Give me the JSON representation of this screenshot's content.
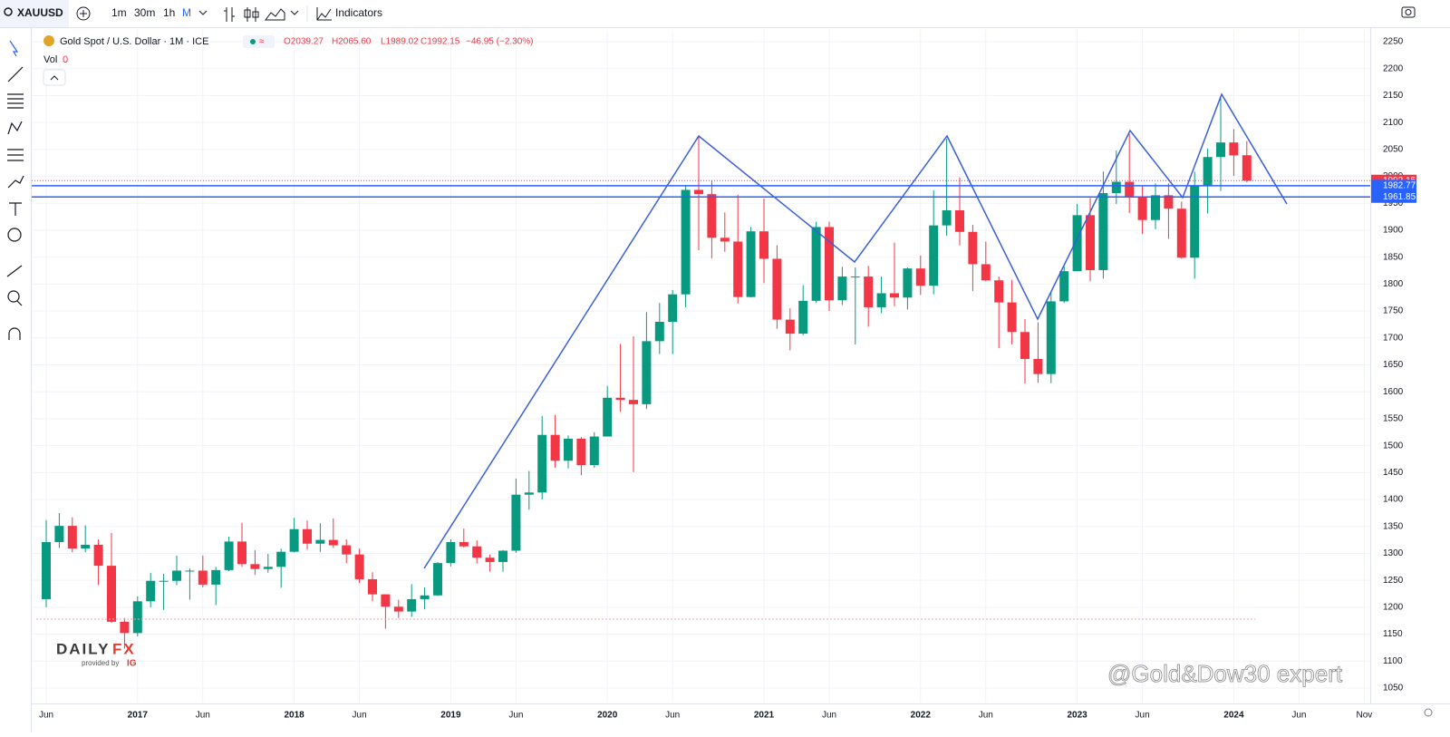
{
  "toolbar": {
    "symbol": "XAUUSD",
    "intervals": [
      "1m",
      "30m",
      "1h",
      "M"
    ],
    "indicators": "Indicators"
  },
  "legend": {
    "name": "Gold Spot / U.S. Dollar · 1M · ICE",
    "open": "O2039.27",
    "high": "H2065.60",
    "low": "L1989.02",
    "close": "C1992.15",
    "change": "−46.95 (−2.30%)",
    "vol_label": "Vol",
    "vol_value": "0"
  },
  "branding": {
    "logo_a": "DAILY",
    "logo_b": "FX",
    "provided": "provided by",
    "ig": "IG",
    "watermark": "@Gold&Dow30 expert"
  },
  "chart_data": {
    "type": "candlestick",
    "up_color": "#089981",
    "down_color": "#f23645",
    "grid": true,
    "x": [
      "2016-06",
      "2016-07",
      "2016-08",
      "2016-09",
      "2016-10",
      "2016-11",
      "2016-12",
      "2017-01",
      "2017-02",
      "2017-03",
      "2017-04",
      "2017-05",
      "2017-06",
      "2017-07",
      "2017-08",
      "2017-09",
      "2017-10",
      "2017-11",
      "2017-12",
      "2018-01",
      "2018-02",
      "2018-03",
      "2018-04",
      "2018-05",
      "2018-06",
      "2018-07",
      "2018-08",
      "2018-09",
      "2018-10",
      "2018-11",
      "2018-12",
      "2019-01",
      "2019-02",
      "2019-03",
      "2019-04",
      "2019-05",
      "2019-06",
      "2019-07",
      "2019-08",
      "2019-09",
      "2019-10",
      "2019-11",
      "2019-12",
      "2020-01",
      "2020-02",
      "2020-03",
      "2020-04",
      "2020-05",
      "2020-06",
      "2020-07",
      "2020-08",
      "2020-09",
      "2020-10",
      "2020-11",
      "2020-12",
      "2021-01",
      "2021-02",
      "2021-03",
      "2021-04",
      "2021-05",
      "2021-06",
      "2021-07",
      "2021-08",
      "2021-09",
      "2021-10",
      "2021-11",
      "2021-12",
      "2022-01",
      "2022-02",
      "2022-03",
      "2022-04",
      "2022-05",
      "2022-06",
      "2022-07",
      "2022-08",
      "2022-09",
      "2022-10",
      "2022-11",
      "2022-12",
      "2023-01",
      "2023-02",
      "2023-03",
      "2023-04",
      "2023-05",
      "2023-06",
      "2023-07",
      "2023-08",
      "2023-09",
      "2023-10",
      "2023-11",
      "2023-12",
      "2024-01",
      "2024-02"
    ],
    "ohlc": [
      [
        1215,
        1362,
        1200,
        1321
      ],
      [
        1321,
        1375,
        1310,
        1351
      ],
      [
        1351,
        1367,
        1302,
        1309
      ],
      [
        1309,
        1352,
        1302,
        1316
      ],
      [
        1316,
        1326,
        1241,
        1277
      ],
      [
        1277,
        1338,
        1171,
        1173
      ],
      [
        1173,
        1180,
        1123,
        1152
      ],
      [
        1152,
        1220,
        1146,
        1211
      ],
      [
        1211,
        1264,
        1200,
        1249
      ],
      [
        1249,
        1262,
        1195,
        1249
      ],
      [
        1249,
        1296,
        1241,
        1268
      ],
      [
        1268,
        1272,
        1214,
        1268
      ],
      [
        1268,
        1296,
        1237,
        1242
      ],
      [
        1242,
        1275,
        1204,
        1269
      ],
      [
        1269,
        1331,
        1267,
        1322
      ],
      [
        1322,
        1357,
        1275,
        1280
      ],
      [
        1280,
        1306,
        1260,
        1271
      ],
      [
        1271,
        1299,
        1264,
        1275
      ],
      [
        1275,
        1309,
        1236,
        1303
      ],
      [
        1303,
        1366,
        1302,
        1345
      ],
      [
        1345,
        1361,
        1307,
        1318
      ],
      [
        1318,
        1356,
        1303,
        1325
      ],
      [
        1325,
        1365,
        1310,
        1315
      ],
      [
        1315,
        1326,
        1282,
        1298
      ],
      [
        1298,
        1309,
        1245,
        1252
      ],
      [
        1252,
        1265,
        1211,
        1224
      ],
      [
        1224,
        1224,
        1160,
        1201
      ],
      [
        1201,
        1214,
        1180,
        1192
      ],
      [
        1192,
        1243,
        1182,
        1215
      ],
      [
        1215,
        1237,
        1196,
        1222
      ],
      [
        1222,
        1284,
        1221,
        1282
      ],
      [
        1282,
        1326,
        1276,
        1321
      ],
      [
        1321,
        1346,
        1311,
        1313
      ],
      [
        1313,
        1324,
        1281,
        1292
      ],
      [
        1292,
        1298,
        1266,
        1284
      ],
      [
        1284,
        1306,
        1266,
        1305
      ],
      [
        1305,
        1439,
        1301,
        1409
      ],
      [
        1409,
        1453,
        1381,
        1413
      ],
      [
        1413,
        1555,
        1400,
        1520
      ],
      [
        1520,
        1557,
        1459,
        1472
      ],
      [
        1472,
        1519,
        1458,
        1513
      ],
      [
        1513,
        1516,
        1445,
        1464
      ],
      [
        1464,
        1525,
        1459,
        1517
      ],
      [
        1517,
        1611,
        1517,
        1589
      ],
      [
        1589,
        1689,
        1563,
        1585
      ],
      [
        1585,
        1703,
        1451,
        1577
      ],
      [
        1577,
        1748,
        1568,
        1694
      ],
      [
        1694,
        1765,
        1670,
        1730
      ],
      [
        1730,
        1789,
        1670,
        1781
      ],
      [
        1781,
        1984,
        1757,
        1975
      ],
      [
        1975,
        2075,
        1863,
        1967
      ],
      [
        1967,
        1992,
        1848,
        1886
      ],
      [
        1886,
        1933,
        1860,
        1879
      ],
      [
        1879,
        1966,
        1764,
        1776
      ],
      [
        1776,
        1906,
        1775,
        1898
      ],
      [
        1898,
        1959,
        1802,
        1847
      ],
      [
        1847,
        1872,
        1717,
        1734
      ],
      [
        1734,
        1755,
        1677,
        1708
      ],
      [
        1708,
        1798,
        1705,
        1769
      ],
      [
        1769,
        1916,
        1765,
        1906
      ],
      [
        1906,
        1916,
        1750,
        1770
      ],
      [
        1770,
        1832,
        1761,
        1814
      ],
      [
        1814,
        1831,
        1688,
        1814
      ],
      [
        1814,
        1834,
        1721,
        1757
      ],
      [
        1757,
        1814,
        1746,
        1783
      ],
      [
        1783,
        1877,
        1759,
        1775
      ],
      [
        1775,
        1831,
        1753,
        1829
      ],
      [
        1829,
        1853,
        1780,
        1797
      ],
      [
        1797,
        1974,
        1781,
        1909
      ],
      [
        1909,
        2070,
        1890,
        1937
      ],
      [
        1937,
        1998,
        1872,
        1897
      ],
      [
        1897,
        1910,
        1787,
        1837
      ],
      [
        1837,
        1879,
        1805,
        1807
      ],
      [
        1807,
        1814,
        1681,
        1766
      ],
      [
        1766,
        1808,
        1688,
        1711
      ],
      [
        1711,
        1735,
        1615,
        1661
      ],
      [
        1661,
        1729,
        1617,
        1633
      ],
      [
        1633,
        1786,
        1616,
        1768
      ],
      [
        1768,
        1833,
        1765,
        1824
      ],
      [
        1824,
        1949,
        1824,
        1928
      ],
      [
        1928,
        1960,
        1805,
        1826
      ],
      [
        1826,
        2009,
        1810,
        1969
      ],
      [
        1969,
        2048,
        1949,
        1990
      ],
      [
        1990,
        2079,
        1932,
        1962
      ],
      [
        1962,
        1983,
        1893,
        1919
      ],
      [
        1919,
        1987,
        1902,
        1965
      ],
      [
        1965,
        1987,
        1884,
        1940
      ],
      [
        1940,
        1953,
        1847,
        1849
      ],
      [
        1849,
        2009,
        1810,
        1983
      ],
      [
        1983,
        2052,
        1931,
        2036
      ],
      [
        2036,
        2146,
        1973,
        2063
      ],
      [
        2063,
        2088,
        2001,
        2039
      ],
      [
        2039.27,
        2065.6,
        1989.02,
        1992.15
      ]
    ],
    "ylim": [
      1023,
      2272
    ],
    "yticks": [
      1050,
      1100,
      1150,
      1200,
      1250,
      1300,
      1350,
      1400,
      1450,
      1500,
      1550,
      1600,
      1650,
      1700,
      1750,
      1800,
      1850,
      1900,
      1950,
      2000,
      2050,
      2100,
      2150,
      2200,
      2250
    ],
    "xticks": [
      {
        "value": "2016-06",
        "label": "Jun"
      },
      {
        "value": "2017-01",
        "label": "2017"
      },
      {
        "value": "2017-06",
        "label": "Jun"
      },
      {
        "value": "2018-01",
        "label": "2018"
      },
      {
        "value": "2018-06",
        "label": "Jun"
      },
      {
        "value": "2019-01",
        "label": "2019"
      },
      {
        "value": "2019-06",
        "label": "Jun"
      },
      {
        "value": "2020-01",
        "label": "2020"
      },
      {
        "value": "2020-06",
        "label": "Jun"
      },
      {
        "value": "2021-01",
        "label": "2021"
      },
      {
        "value": "2021-06",
        "label": "Jun"
      },
      {
        "value": "2022-01",
        "label": "2022"
      },
      {
        "value": "2022-06",
        "label": "Jun"
      },
      {
        "value": "2023-01",
        "label": "2023"
      },
      {
        "value": "2023-06",
        "label": "Jun"
      },
      {
        "value": "2024-01",
        "label": "2024"
      },
      {
        "value": "2024-06",
        "label": "Jun"
      },
      {
        "value": "2024-11",
        "label": "Nov"
      }
    ],
    "price_lines": [
      {
        "value": 1992.15,
        "color": "#f23645"
      },
      {
        "value": 1982.77,
        "color": "#2962ff"
      },
      {
        "value": 1961.85,
        "color": "#2962ff"
      }
    ]
  }
}
